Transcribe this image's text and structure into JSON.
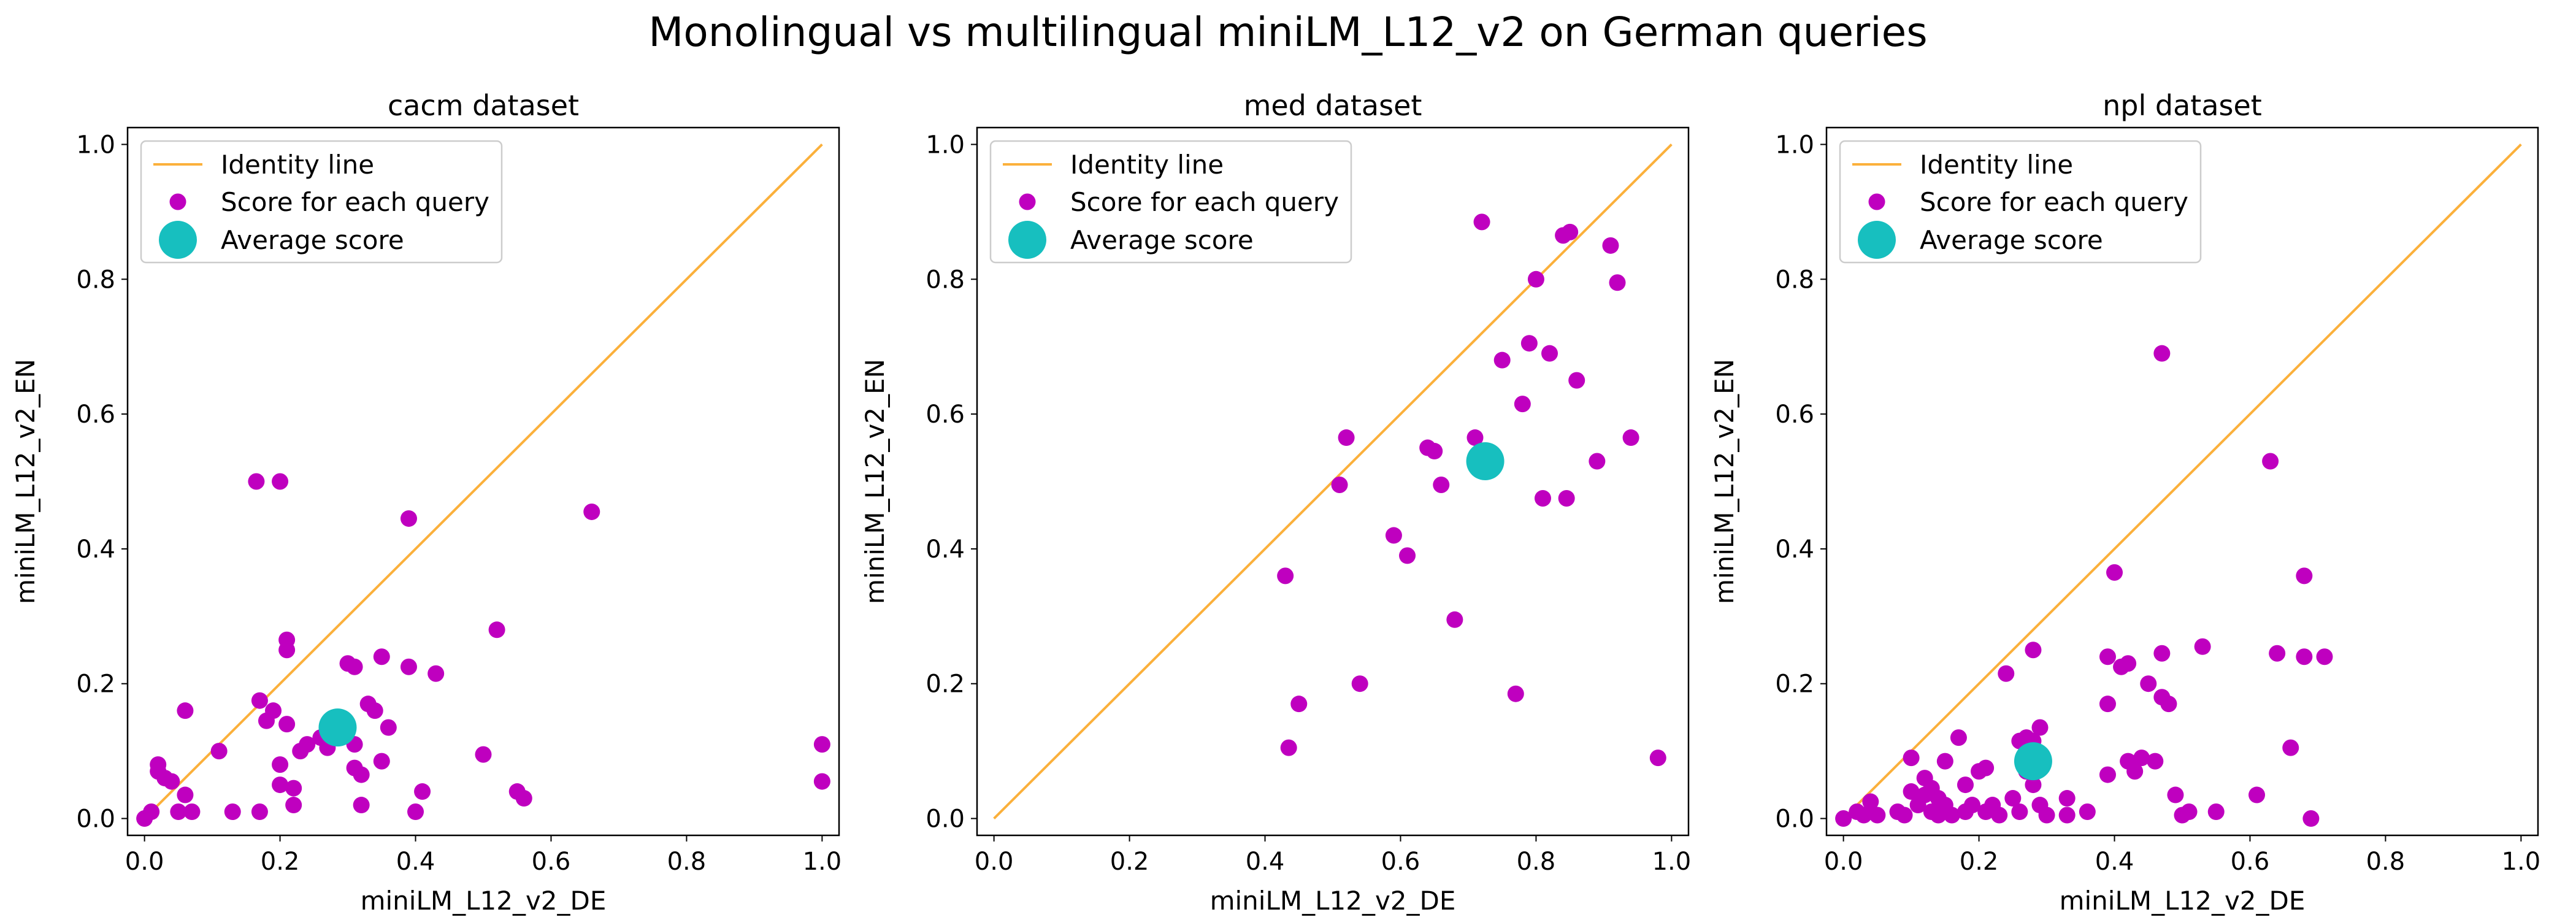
{
  "figure": {
    "suptitle": "Monolingual vs multilingual miniLM_L12_v2 on German queries"
  },
  "colors": {
    "identity_line": "#fbb03b",
    "query_points": "#bf00bf",
    "average_point": "#17bfbf",
    "axes": "#000000",
    "legend_border": "#cccccc"
  },
  "chart_data": [
    {
      "type": "scatter",
      "title": "cacm dataset",
      "xlabel": "miniLM_L12_v2_DE",
      "ylabel": "miniLM_L12_v2_EN",
      "xlim": [
        -0.025,
        1.025
      ],
      "ylim": [
        -0.025,
        1.025
      ],
      "xticks": [
        "0.0",
        "0.2",
        "0.4",
        "0.6",
        "0.8",
        "1.0"
      ],
      "yticks": [
        "0.0",
        "0.2",
        "0.4",
        "0.6",
        "0.8",
        "1.0"
      ],
      "grid": false,
      "legend": {
        "position": "top-left",
        "entries": [
          "Identity line",
          "Score for each query",
          "Average score"
        ]
      },
      "series": [
        {
          "name": "Identity line",
          "kind": "line",
          "x": [
            0,
            1
          ],
          "y": [
            0,
            1
          ]
        },
        {
          "name": "Score for each query",
          "kind": "scatter",
          "points": [
            [
              0.0,
              0.0
            ],
            [
              0.01,
              0.01
            ],
            [
              0.02,
              0.08
            ],
            [
              0.02,
              0.07
            ],
            [
              0.03,
              0.06
            ],
            [
              0.04,
              0.055
            ],
            [
              0.05,
              0.01
            ],
            [
              0.06,
              0.16
            ],
            [
              0.06,
              0.035
            ],
            [
              0.07,
              0.01
            ],
            [
              0.11,
              0.1
            ],
            [
              0.13,
              0.01
            ],
            [
              0.165,
              0.5
            ],
            [
              0.2,
              0.5
            ],
            [
              0.17,
              0.175
            ],
            [
              0.18,
              0.145
            ],
            [
              0.19,
              0.16
            ],
            [
              0.2,
              0.08
            ],
            [
              0.2,
              0.05
            ],
            [
              0.21,
              0.25
            ],
            [
              0.21,
              0.265
            ],
            [
              0.21,
              0.14
            ],
            [
              0.22,
              0.02
            ],
            [
              0.17,
              0.01
            ],
            [
              0.22,
              0.045
            ],
            [
              0.23,
              0.1
            ],
            [
              0.24,
              0.11
            ],
            [
              0.26,
              0.12
            ],
            [
              0.27,
              0.105
            ],
            [
              0.3,
              0.23
            ],
            [
              0.31,
              0.225
            ],
            [
              0.31,
              0.11
            ],
            [
              0.31,
              0.075
            ],
            [
              0.32,
              0.065
            ],
            [
              0.32,
              0.02
            ],
            [
              0.33,
              0.17
            ],
            [
              0.34,
              0.16
            ],
            [
              0.35,
              0.24
            ],
            [
              0.35,
              0.085
            ],
            [
              0.36,
              0.135
            ],
            [
              0.39,
              0.225
            ],
            [
              0.39,
              0.445
            ],
            [
              0.4,
              0.01
            ],
            [
              0.41,
              0.04
            ],
            [
              0.43,
              0.215
            ],
            [
              0.5,
              0.095
            ],
            [
              0.52,
              0.28
            ],
            [
              0.55,
              0.04
            ],
            [
              0.56,
              0.03
            ],
            [
              0.66,
              0.455
            ],
            [
              1.0,
              0.11
            ],
            [
              1.0,
              0.055
            ]
          ]
        },
        {
          "name": "Average score",
          "kind": "scatter",
          "points": [
            [
              0.285,
              0.135
            ]
          ]
        }
      ]
    },
    {
      "type": "scatter",
      "title": "med dataset",
      "xlabel": "miniLM_L12_v2_DE",
      "ylabel": "miniLM_L12_v2_EN",
      "xlim": [
        -0.025,
        1.025
      ],
      "ylim": [
        -0.025,
        1.025
      ],
      "xticks": [
        "0.0",
        "0.2",
        "0.4",
        "0.6",
        "0.8",
        "1.0"
      ],
      "yticks": [
        "0.0",
        "0.2",
        "0.4",
        "0.6",
        "0.8",
        "1.0"
      ],
      "grid": false,
      "legend": {
        "position": "top-left",
        "entries": [
          "Identity line",
          "Score for each query",
          "Average score"
        ]
      },
      "series": [
        {
          "name": "Identity line",
          "kind": "line",
          "x": [
            0,
            1
          ],
          "y": [
            0,
            1
          ]
        },
        {
          "name": "Score for each query",
          "kind": "scatter",
          "points": [
            [
              0.43,
              0.36
            ],
            [
              0.435,
              0.105
            ],
            [
              0.45,
              0.17
            ],
            [
              0.51,
              0.495
            ],
            [
              0.52,
              0.565
            ],
            [
              0.54,
              0.2
            ],
            [
              0.59,
              0.42
            ],
            [
              0.61,
              0.39
            ],
            [
              0.64,
              0.55
            ],
            [
              0.65,
              0.545
            ],
            [
              0.66,
              0.495
            ],
            [
              0.68,
              0.295
            ],
            [
              0.71,
              0.565
            ],
            [
              0.72,
              0.885
            ],
            [
              0.75,
              0.68
            ],
            [
              0.77,
              0.185
            ],
            [
              0.78,
              0.615
            ],
            [
              0.79,
              0.705
            ],
            [
              0.8,
              0.8
            ],
            [
              0.81,
              0.475
            ],
            [
              0.82,
              0.69
            ],
            [
              0.84,
              0.865
            ],
            [
              0.85,
              0.87
            ],
            [
              0.845,
              0.475
            ],
            [
              0.86,
              0.65
            ],
            [
              0.89,
              0.53
            ],
            [
              0.91,
              0.85
            ],
            [
              0.92,
              0.795
            ],
            [
              0.94,
              0.565
            ],
            [
              0.98,
              0.09
            ]
          ]
        },
        {
          "name": "Average score",
          "kind": "scatter",
          "points": [
            [
              0.725,
              0.53
            ]
          ]
        }
      ]
    },
    {
      "type": "scatter",
      "title": "npl dataset",
      "xlabel": "miniLM_L12_v2_DE",
      "ylabel": "miniLM_L12_v2_EN",
      "xlim": [
        -0.025,
        1.025
      ],
      "ylim": [
        -0.025,
        1.025
      ],
      "xticks": [
        "0.0",
        "0.2",
        "0.4",
        "0.6",
        "0.8",
        "1.0"
      ],
      "yticks": [
        "0.0",
        "0.2",
        "0.4",
        "0.6",
        "0.8",
        "1.0"
      ],
      "grid": false,
      "legend": {
        "position": "top-left",
        "entries": [
          "Identity line",
          "Score for each query",
          "Average score"
        ]
      },
      "series": [
        {
          "name": "Identity line",
          "kind": "line",
          "x": [
            0,
            1
          ],
          "y": [
            0,
            1
          ]
        },
        {
          "name": "Score for each query",
          "kind": "scatter",
          "points": [
            [
              0.0,
              0.0
            ],
            [
              0.02,
              0.01
            ],
            [
              0.03,
              0.005
            ],
            [
              0.04,
              0.025
            ],
            [
              0.04,
              0.01
            ],
            [
              0.05,
              0.005
            ],
            [
              0.08,
              0.01
            ],
            [
              0.09,
              0.005
            ],
            [
              0.1,
              0.09
            ],
            [
              0.1,
              0.04
            ],
            [
              0.11,
              0.02
            ],
            [
              0.12,
              0.06
            ],
            [
              0.12,
              0.035
            ],
            [
              0.13,
              0.01
            ],
            [
              0.13,
              0.045
            ],
            [
              0.14,
              0.03
            ],
            [
              0.14,
              0.005
            ],
            [
              0.15,
              0.085
            ],
            [
              0.15,
              0.02
            ],
            [
              0.16,
              0.005
            ],
            [
              0.17,
              0.12
            ],
            [
              0.18,
              0.05
            ],
            [
              0.18,
              0.01
            ],
            [
              0.19,
              0.02
            ],
            [
              0.2,
              0.07
            ],
            [
              0.21,
              0.075
            ],
            [
              0.21,
              0.01
            ],
            [
              0.22,
              0.02
            ],
            [
              0.23,
              0.005
            ],
            [
              0.24,
              0.215
            ],
            [
              0.25,
              0.03
            ],
            [
              0.26,
              0.01
            ],
            [
              0.26,
              0.115
            ],
            [
              0.27,
              0.12
            ],
            [
              0.27,
              0.07
            ],
            [
              0.28,
              0.05
            ],
            [
              0.28,
              0.25
            ],
            [
              0.28,
              0.115
            ],
            [
              0.29,
              0.135
            ],
            [
              0.29,
              0.02
            ],
            [
              0.3,
              0.005
            ],
            [
              0.33,
              0.03
            ],
            [
              0.33,
              0.005
            ],
            [
              0.36,
              0.01
            ],
            [
              0.39,
              0.24
            ],
            [
              0.39,
              0.17
            ],
            [
              0.39,
              0.065
            ],
            [
              0.4,
              0.365
            ],
            [
              0.41,
              0.225
            ],
            [
              0.42,
              0.085
            ],
            [
              0.42,
              0.23
            ],
            [
              0.43,
              0.07
            ],
            [
              0.44,
              0.09
            ],
            [
              0.45,
              0.2
            ],
            [
              0.46,
              0.085
            ],
            [
              0.47,
              0.245
            ],
            [
              0.47,
              0.18
            ],
            [
              0.47,
              0.69
            ],
            [
              0.48,
              0.17
            ],
            [
              0.49,
              0.035
            ],
            [
              0.5,
              0.005
            ],
            [
              0.51,
              0.01
            ],
            [
              0.53,
              0.255
            ],
            [
              0.55,
              0.01
            ],
            [
              0.61,
              0.035
            ],
            [
              0.63,
              0.53
            ],
            [
              0.64,
              0.245
            ],
            [
              0.66,
              0.105
            ],
            [
              0.68,
              0.36
            ],
            [
              0.68,
              0.24
            ],
            [
              0.69,
              0.0
            ],
            [
              0.71,
              0.24
            ]
          ]
        },
        {
          "name": "Average score",
          "kind": "scatter",
          "points": [
            [
              0.28,
              0.085
            ]
          ]
        }
      ]
    }
  ]
}
